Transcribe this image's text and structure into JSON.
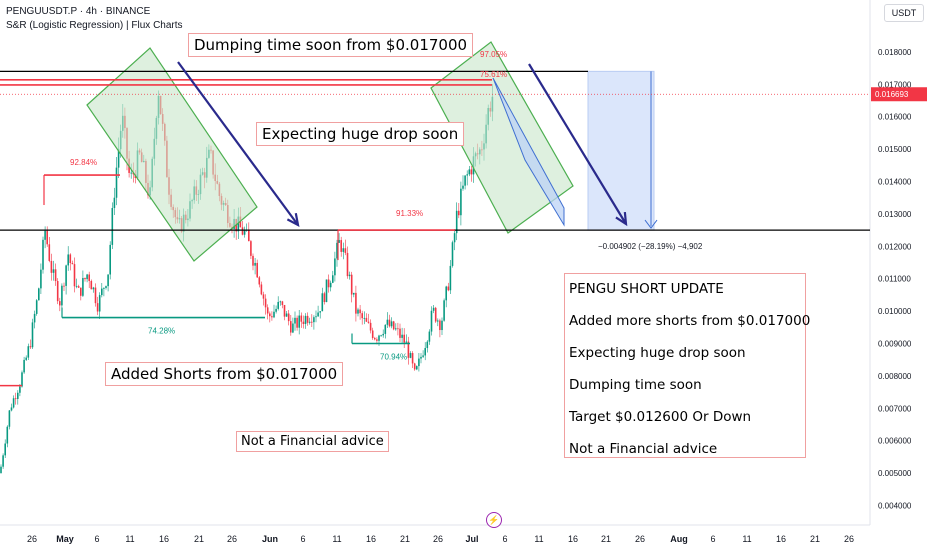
{
  "header": {
    "symbol_line": "PENGUUSDT.P · 4h · BINANCE",
    "indicator_line": "S&R (Logistic Regression) | Flux Charts",
    "currency": "USDT"
  },
  "chart_data": {
    "type": "candlestick",
    "symbol": "PENGUUSDT.P",
    "timeframe": "4h",
    "exchange": "BINANCE",
    "ylim": [
      0.0037,
      0.019
    ],
    "y_ticks": [
      0.004,
      0.005,
      0.006,
      0.007,
      0.008,
      0.009,
      0.01,
      0.011,
      0.012,
      0.013,
      0.014,
      0.015,
      0.016,
      0.017,
      0.018
    ],
    "x_ticks": [
      "26",
      "May",
      "6",
      "11",
      "16",
      "21",
      "26",
      "Jun",
      "6",
      "11",
      "16",
      "21",
      "26",
      "Jul",
      "6",
      "11",
      "16",
      "21",
      "26",
      "Aug",
      "6",
      "11",
      "16",
      "21",
      "26"
    ],
    "last_price": 0.016693,
    "last_price_label": "0.016693",
    "price_path": [
      [
        0,
        0.005
      ],
      [
        10,
        0.007
      ],
      [
        20,
        0.0078
      ],
      [
        30,
        0.009
      ],
      [
        38,
        0.0105
      ],
      [
        45,
        0.0125
      ],
      [
        52,
        0.0112
      ],
      [
        60,
        0.0103
      ],
      [
        68,
        0.0118
      ],
      [
        78,
        0.0105
      ],
      [
        88,
        0.0112
      ],
      [
        98,
        0.0102
      ],
      [
        108,
        0.0112
      ],
      [
        115,
        0.014
      ],
      [
        122,
        0.016
      ],
      [
        130,
        0.014
      ],
      [
        140,
        0.0148
      ],
      [
        150,
        0.0135
      ],
      [
        158,
        0.017
      ],
      [
        168,
        0.014
      ],
      [
        178,
        0.0125
      ],
      [
        190,
        0.0132
      ],
      [
        200,
        0.014
      ],
      [
        210,
        0.0148
      ],
      [
        220,
        0.0135
      ],
      [
        232,
        0.0128
      ],
      [
        245,
        0.0124
      ],
      [
        258,
        0.0112
      ],
      [
        268,
        0.0098
      ],
      [
        280,
        0.0102
      ],
      [
        292,
        0.0095
      ],
      [
        305,
        0.0098
      ],
      [
        318,
        0.01
      ],
      [
        330,
        0.011
      ],
      [
        340,
        0.0122
      ],
      [
        348,
        0.0112
      ],
      [
        356,
        0.01
      ],
      [
        366,
        0.0096
      ],
      [
        376,
        0.0092
      ],
      [
        386,
        0.0096
      ],
      [
        396,
        0.0094
      ],
      [
        406,
        0.009
      ],
      [
        415,
        0.008
      ],
      [
        425,
        0.009
      ],
      [
        433,
        0.01
      ],
      [
        441,
        0.0096
      ],
      [
        449,
        0.011
      ],
      [
        457,
        0.013
      ],
      [
        465,
        0.014
      ],
      [
        473,
        0.0146
      ],
      [
        481,
        0.015
      ],
      [
        489,
        0.0163
      ],
      [
        494,
        0.0168
      ]
    ],
    "support_resistance": [
      {
        "label": "92.84%",
        "price": 0.0142,
        "color": "#f23645"
      },
      {
        "label": "74.28%",
        "price": 0.0098,
        "color": "#089981"
      },
      {
        "label": "91.33%",
        "price": 0.0125,
        "color": "#f23645"
      },
      {
        "label": "70.94%",
        "price": 0.009,
        "color": "#089981"
      },
      {
        "label": "97.05%",
        "price": 0.0176,
        "color": "#f23645"
      },
      {
        "label": "75.61%",
        "price": 0.0172,
        "color": "#f23645"
      }
    ],
    "horizontal_lines": [
      {
        "price": 0.0174,
        "color": "#000000"
      },
      {
        "price": 0.0125,
        "color": "#000000"
      }
    ],
    "measure_label": "−0.004902 (−28.19%) −4,902",
    "measure_range": [
      0.0174,
      0.0125
    ]
  },
  "annotations": {
    "dumping_title": "Dumping time soon from $0.017000",
    "expecting_drop": "Expecting huge drop soon",
    "added_shorts": "Added Shorts from $0.017000",
    "not_advice": "Not a Financial advice"
  },
  "info_box": {
    "lines": [
      "PENGU SHORT UPDATE",
      "Added more shorts from $0.017000",
      "Expecting huge drop soon",
      "Dumping time soon",
      "Target $0.012600 Or Down",
      "Not a Financial advice"
    ]
  },
  "colors": {
    "up": "#089981",
    "down": "#f23645",
    "channel_fill": "#c8e6c9",
    "channel_stroke": "#4caf50",
    "arrow": "#2a2a8c",
    "measure_fill": "#dbe6fb",
    "measure_stroke": "#3f6fd1"
  },
  "icons": {
    "flash": "lightning-icon"
  }
}
